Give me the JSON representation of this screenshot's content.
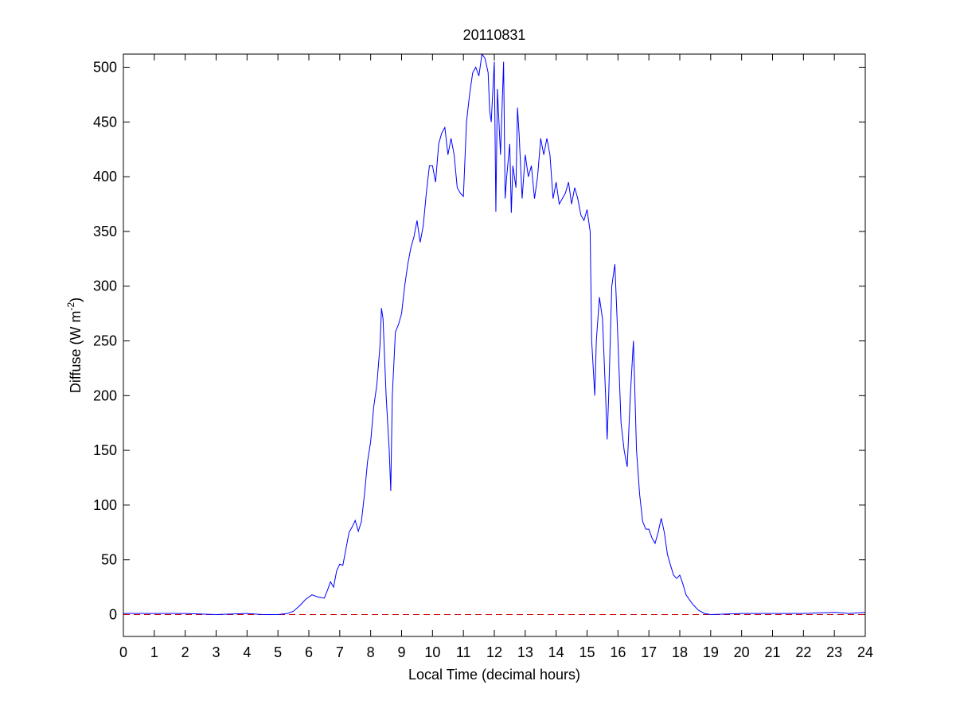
{
  "chart_data": {
    "type": "line",
    "title": "20110831",
    "xlabel": "Local Time (decimal hours)",
    "ylabel": {
      "text": "Diffuse (W m",
      "sup": "-2",
      "suffix": ")"
    },
    "xlim": [
      0,
      24
    ],
    "ylim": [
      -20,
      512
    ],
    "xticks": [
      0,
      1,
      2,
      3,
      4,
      5,
      6,
      7,
      8,
      9,
      10,
      11,
      12,
      13,
      14,
      15,
      16,
      17,
      18,
      19,
      20,
      21,
      22,
      23,
      24
    ],
    "yticks": [
      0,
      50,
      100,
      150,
      200,
      250,
      300,
      350,
      400,
      450,
      500
    ],
    "grid": false,
    "hlines": [
      {
        "value": 0,
        "color": "#cc0000",
        "style": "dashed"
      }
    ],
    "series": [
      {
        "color": "#0000ff",
        "x": [
          0,
          1,
          2,
          3,
          4,
          4.5,
          5,
          5.3,
          5.5,
          5.7,
          5.9,
          6.1,
          6.3,
          6.5,
          6.6,
          6.7,
          6.8,
          6.9,
          7.0,
          7.1,
          7.2,
          7.3,
          7.4,
          7.5,
          7.6,
          7.7,
          7.8,
          7.9,
          8.0,
          8.1,
          8.2,
          8.3,
          8.35,
          8.4,
          8.5,
          8.6,
          8.65,
          8.7,
          8.8,
          8.9,
          9.0,
          9.1,
          9.2,
          9.3,
          9.4,
          9.5,
          9.6,
          9.7,
          9.8,
          9.9,
          10.0,
          10.1,
          10.2,
          10.3,
          10.4,
          10.5,
          10.6,
          10.7,
          10.8,
          10.9,
          11.0,
          11.1,
          11.2,
          11.3,
          11.4,
          11.5,
          11.6,
          11.7,
          11.8,
          11.85,
          11.9,
          12.0,
          12.05,
          12.1,
          12.2,
          12.3,
          12.35,
          12.4,
          12.5,
          12.55,
          12.6,
          12.7,
          12.75,
          12.8,
          12.9,
          13.0,
          13.1,
          13.2,
          13.3,
          13.4,
          13.5,
          13.6,
          13.7,
          13.8,
          13.9,
          14.0,
          14.1,
          14.2,
          14.3,
          14.4,
          14.5,
          14.6,
          14.7,
          14.8,
          14.9,
          15.0,
          15.1,
          15.15,
          15.25,
          15.3,
          15.4,
          15.5,
          15.6,
          15.65,
          15.7,
          15.8,
          15.9,
          16.0,
          16.1,
          16.2,
          16.3,
          16.4,
          16.5,
          16.6,
          16.7,
          16.8,
          16.9,
          17.0,
          17.1,
          17.2,
          17.3,
          17.4,
          17.5,
          17.6,
          17.7,
          17.8,
          17.9,
          18.0,
          18.1,
          18.2,
          18.4,
          18.6,
          18.8,
          19,
          20,
          21,
          22,
          23,
          23.5,
          24
        ],
        "values": [
          1,
          1,
          1,
          0,
          1,
          0,
          0,
          1,
          3,
          8,
          14,
          18,
          16,
          15,
          22,
          30,
          25,
          40,
          46,
          45,
          60,
          75,
          80,
          86,
          76,
          85,
          110,
          140,
          158,
          190,
          210,
          245,
          280,
          270,
          200,
          150,
          113,
          200,
          258,
          265,
          275,
          300,
          320,
          335,
          345,
          360,
          340,
          355,
          385,
          410,
          410,
          395,
          430,
          440,
          445,
          420,
          435,
          420,
          390,
          385,
          382,
          450,
          475,
          495,
          500,
          492,
          512,
          508,
          495,
          460,
          450,
          505,
          368,
          480,
          420,
          505,
          380,
          400,
          430,
          367,
          410,
          390,
          463,
          440,
          380,
          420,
          400,
          410,
          380,
          400,
          435,
          420,
          435,
          420,
          380,
          395,
          375,
          380,
          385,
          395,
          375,
          390,
          380,
          365,
          360,
          370,
          350,
          250,
          200,
          250,
          290,
          270,
          200,
          160,
          200,
          300,
          320,
          250,
          175,
          150,
          135,
          200,
          250,
          150,
          110,
          85,
          78,
          78,
          70,
          65,
          75,
          88,
          75,
          55,
          45,
          36,
          33,
          36,
          28,
          18,
          10,
          4,
          1,
          0,
          1,
          1,
          1,
          2,
          1,
          2
        ]
      }
    ]
  }
}
